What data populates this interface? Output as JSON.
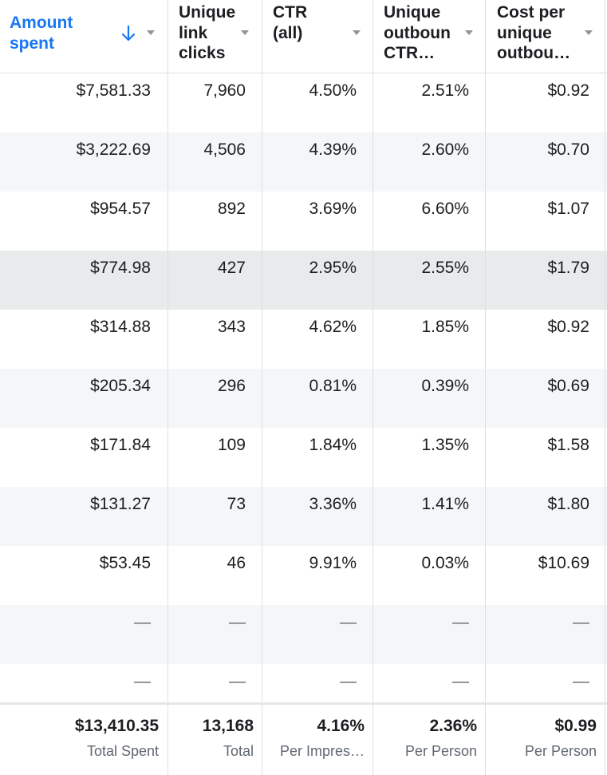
{
  "columns": [
    {
      "key": "amount_spent",
      "label": "Amount\nspent",
      "sorted": true
    },
    {
      "key": "unique_link_clicks",
      "label": "Unique\nlink\nclicks",
      "sorted": false
    },
    {
      "key": "ctr_all",
      "label": "CTR\n(all)",
      "sorted": false
    },
    {
      "key": "unique_outbound_ctr",
      "label": "Unique\noutboun\nCTR…",
      "sorted": false
    },
    {
      "key": "cost_per_unique_outbound",
      "label": "Cost per\nunique\noutbou…",
      "sorted": false
    }
  ],
  "rows": [
    [
      "$7,581.33",
      "7,960",
      "4.50%",
      "2.51%",
      "$0.92"
    ],
    [
      "$3,222.69",
      "4,506",
      "4.39%",
      "2.60%",
      "$0.70"
    ],
    [
      "$954.57",
      "892",
      "3.69%",
      "6.60%",
      "$1.07"
    ],
    [
      "$774.98",
      "427",
      "2.95%",
      "2.55%",
      "$1.79"
    ],
    [
      "$314.88",
      "343",
      "4.62%",
      "1.85%",
      "$0.92"
    ],
    [
      "$205.34",
      "296",
      "0.81%",
      "0.39%",
      "$0.69"
    ],
    [
      "$171.84",
      "109",
      "1.84%",
      "1.35%",
      "$1.58"
    ],
    [
      "$131.27",
      "73",
      "3.36%",
      "1.41%",
      "$1.80"
    ],
    [
      "$53.45",
      "46",
      "9.91%",
      "0.03%",
      "$10.69"
    ],
    [
      "—",
      "—",
      "—",
      "—",
      "—"
    ],
    [
      "—",
      "—",
      "—",
      "—",
      "—"
    ]
  ],
  "hover_row": 3,
  "totals": [
    {
      "value": "$13,410.35",
      "label": "Total Spent"
    },
    {
      "value": "13,168",
      "label": "Total"
    },
    {
      "value": "4.16%",
      "label": "Per Impres…"
    },
    {
      "value": "2.36%",
      "label": "Per Person"
    },
    {
      "value": "$0.99",
      "label": "Per Person"
    }
  ],
  "icons": {
    "sort": "arrow-down-icon",
    "menu": "caret-down-icon"
  },
  "colors": {
    "accent": "#1877f2",
    "border": "#dddfe2",
    "stripe": "#f5f6f7",
    "hover": "#e9eaeb",
    "muted": "#606770"
  }
}
